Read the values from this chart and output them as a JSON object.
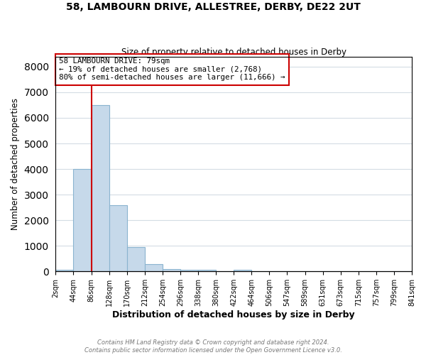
{
  "title": "58, LAMBOURN DRIVE, ALLESTREE, DERBY, DE22 2UT",
  "subtitle": "Size of property relative to detached houses in Derby",
  "xlabel": "Distribution of detached houses by size in Derby",
  "ylabel": "Number of detached properties",
  "bin_labels": [
    "2sqm",
    "44sqm",
    "86sqm",
    "128sqm",
    "170sqm",
    "212sqm",
    "254sqm",
    "296sqm",
    "338sqm",
    "380sqm",
    "422sqm",
    "464sqm",
    "506sqm",
    "547sqm",
    "589sqm",
    "631sqm",
    "673sqm",
    "715sqm",
    "757sqm",
    "799sqm",
    "841sqm"
  ],
  "bar_heights": [
    75,
    4000,
    6500,
    2600,
    950,
    280,
    100,
    55,
    55,
    0,
    55,
    0,
    0,
    0,
    0,
    0,
    0,
    0,
    0,
    0
  ],
  "bar_color": "#c6d9ea",
  "bar_edge_color": "#8ab4cf",
  "property_line_color": "#cc0000",
  "property_line_bin_index": 2,
  "ylim": [
    0,
    8400
  ],
  "yticks": [
    0,
    1000,
    2000,
    3000,
    4000,
    5000,
    6000,
    7000,
    8000
  ],
  "annotation_text": "58 LAMBOURN DRIVE: 79sqm\n← 19% of detached houses are smaller (2,768)\n80% of semi-detached houses are larger (11,666) →",
  "annotation_box_color": "#cc0000",
  "footer_line1": "Contains HM Land Registry data © Crown copyright and database right 2024.",
  "footer_line2": "Contains public sector information licensed under the Open Government Licence v3.0.",
  "background_color": "#ffffff",
  "grid_color": "#d4dce4"
}
